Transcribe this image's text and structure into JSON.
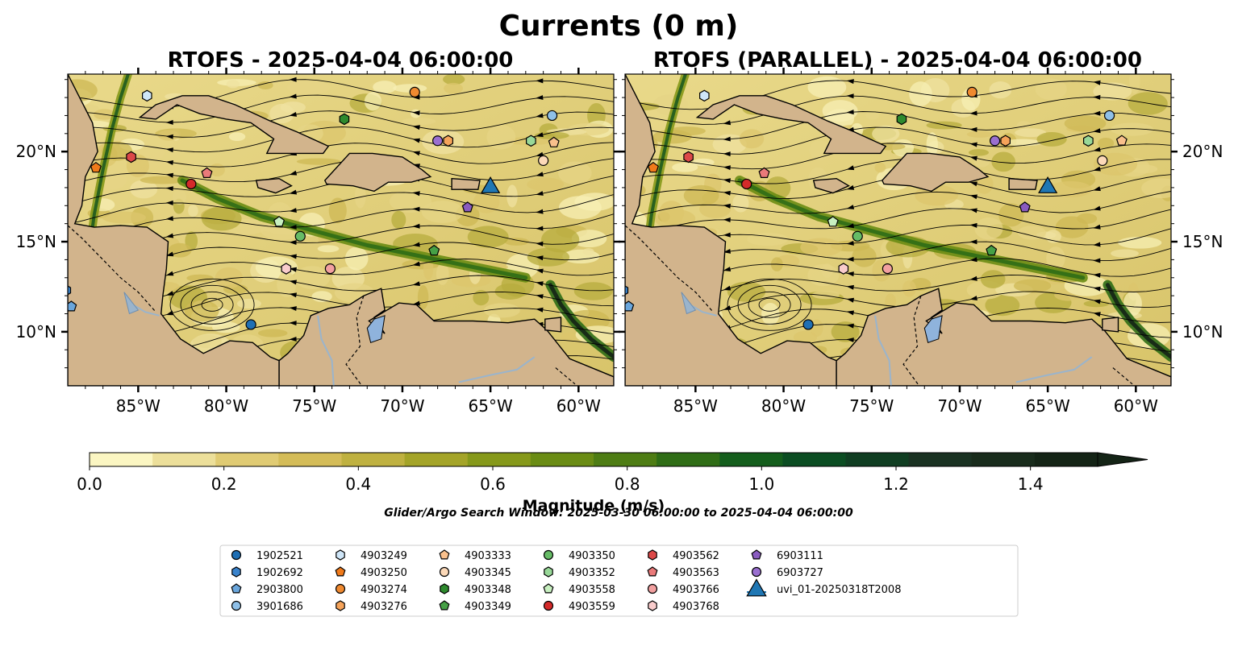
{
  "figure": {
    "suptitle": "Currents (0 m)",
    "panels": [
      {
        "id": "left",
        "title": "RTOFS - 2025-04-04 06:00:00",
        "show_left_labels": true,
        "show_right_labels": false
      },
      {
        "id": "right",
        "title": "RTOFS (PARALLEL) - 2025-04-04 06:00:00",
        "show_left_labels": false,
        "show_right_labels": true
      }
    ],
    "map_extent": {
      "lon_min": -89.0,
      "lon_max": -58.0,
      "lat_min": 7.0,
      "lat_max": 24.3
    },
    "x_ticks": [
      {
        "lon": -85,
        "label": "85°W"
      },
      {
        "lon": -80,
        "label": "80°W"
      },
      {
        "lon": -75,
        "label": "75°W"
      },
      {
        "lon": -70,
        "label": "70°W"
      },
      {
        "lon": -65,
        "label": "65°W"
      },
      {
        "lon": -60,
        "label": "60°W"
      }
    ],
    "y_ticks": [
      {
        "lat": 20,
        "label": "20°N"
      },
      {
        "lat": 15,
        "label": "15°N"
      },
      {
        "lat": 10,
        "label": "10°N"
      }
    ],
    "colors": {
      "land": "#d2b48c",
      "lake": "#8fb3dc",
      "river": "#9ab4cc",
      "streamline": "#000000"
    },
    "colorbar": {
      "label": "Magnitude (m/s)",
      "colors": [
        "#fbf6c2",
        "#ecdf9a",
        "#e0cb73",
        "#d4bc58",
        "#bfb140",
        "#a4a428",
        "#86991a",
        "#6a8c14",
        "#4e7d14",
        "#2f6d16",
        "#145e1c",
        "#0b4d22",
        "#103e22",
        "#1a3222",
        "#192c1c",
        "#142416"
      ],
      "ticks": [
        {
          "value": 0.0,
          "label": "0.0"
        },
        {
          "value": 0.2,
          "label": "0.2"
        },
        {
          "value": 0.4,
          "label": "0.4"
        },
        {
          "value": 0.6,
          "label": "0.6"
        },
        {
          "value": 0.8,
          "label": "0.8"
        },
        {
          "value": 1.0,
          "label": "1.0"
        },
        {
          "value": 1.2,
          "label": "1.2"
        },
        {
          "value": 1.4,
          "label": "1.4"
        }
      ],
      "vmin": 0.0,
      "vmax": 1.5,
      "extend": "max"
    },
    "search_window": "Glider/Argo Search Window: 2025-03-30 06:00:00 to 2025-04-04 06:00:00",
    "legend": [
      {
        "id": "1902521",
        "marker": "circle",
        "color": "#1f6fb4"
      },
      {
        "id": "1902692",
        "marker": "hexagon",
        "color": "#3a83cc"
      },
      {
        "id": "2903800",
        "marker": "pentagon",
        "color": "#6aa6dc"
      },
      {
        "id": "3901686",
        "marker": "circle",
        "color": "#8fc0e8"
      },
      {
        "id": "4903249",
        "marker": "hexagon",
        "color": "#cfe6f8"
      },
      {
        "id": "4903250",
        "marker": "pentagon",
        "color": "#f07a1a"
      },
      {
        "id": "4903274",
        "marker": "circle",
        "color": "#f08a30"
      },
      {
        "id": "4903276",
        "marker": "hexagon",
        "color": "#f5a35a"
      },
      {
        "id": "4903333",
        "marker": "pentagon",
        "color": "#f9c08c"
      },
      {
        "id": "4903345",
        "marker": "circle",
        "color": "#fcd9b8"
      },
      {
        "id": "4903348",
        "marker": "hexagon",
        "color": "#2e8a2e"
      },
      {
        "id": "4903349",
        "marker": "pentagon",
        "color": "#46a046"
      },
      {
        "id": "4903350",
        "marker": "circle",
        "color": "#66bb66"
      },
      {
        "id": "4903352",
        "marker": "hexagon",
        "color": "#98d898"
      },
      {
        "id": "4903558",
        "marker": "pentagon",
        "color": "#c8f0c0"
      },
      {
        "id": "4903559",
        "marker": "circle",
        "color": "#d42a2a"
      },
      {
        "id": "4903562",
        "marker": "hexagon",
        "color": "#dc4848"
      },
      {
        "id": "4903563",
        "marker": "pentagon",
        "color": "#ea7a7a"
      },
      {
        "id": "4903766",
        "marker": "circle",
        "color": "#f2a0a0"
      },
      {
        "id": "4903768",
        "marker": "hexagon",
        "color": "#f9cccc"
      },
      {
        "id": "6903111",
        "marker": "pentagon",
        "color": "#8a5cc0"
      },
      {
        "id": "6903727",
        "marker": "circle",
        "color": "#9a6fd0"
      },
      {
        "id": "uvi_01-20250318T2008",
        "marker": "triangle",
        "color": "#1f77b4"
      }
    ],
    "observations": [
      {
        "id": "1902521",
        "lon": -78.6,
        "lat": 10.4,
        "lon_p": -78.6,
        "lat_p": 10.4
      },
      {
        "id": "1902692",
        "lon": -89.1,
        "lat": 12.3,
        "lon_p": -89.1,
        "lat_p": 12.3
      },
      {
        "id": "2903800",
        "lon": -88.8,
        "lat": 11.4,
        "lon_p": -88.8,
        "lat_p": 11.4
      },
      {
        "id": "3901686",
        "lon": -61.5,
        "lat": 22.0,
        "lon_p": -61.5,
        "lat_p": 22.0
      },
      {
        "id": "4903249",
        "lon": -84.5,
        "lat": 23.1,
        "lon_p": -84.5,
        "lat_p": 23.1
      },
      {
        "id": "4903250",
        "lon": -87.4,
        "lat": 19.1,
        "lon_p": -87.4,
        "lat_p": 19.1
      },
      {
        "id": "4903274",
        "lon": -69.3,
        "lat": 23.3,
        "lon_p": -69.3,
        "lat_p": 23.3
      },
      {
        "id": "4903276",
        "lon": -67.4,
        "lat": 20.6,
        "lon_p": -67.4,
        "lat_p": 20.6
      },
      {
        "id": "4903333",
        "lon": -61.4,
        "lat": 20.5,
        "lon_p": -60.8,
        "lat_p": 20.6
      },
      {
        "id": "4903345",
        "lon": -62.0,
        "lat": 19.5,
        "lon_p": -61.9,
        "lat_p": 19.5
      },
      {
        "id": "4903348",
        "lon": -73.3,
        "lat": 21.8,
        "lon_p": -73.3,
        "lat_p": 21.8
      },
      {
        "id": "4903349",
        "lon": -68.2,
        "lat": 14.5,
        "lon_p": -68.2,
        "lat_p": 14.5
      },
      {
        "id": "4903350",
        "lon": -75.8,
        "lat": 15.3,
        "lon_p": -75.8,
        "lat_p": 15.3
      },
      {
        "id": "4903352",
        "lon": -62.7,
        "lat": 20.6,
        "lon_p": -62.7,
        "lat_p": 20.6
      },
      {
        "id": "4903558",
        "lon": -77.0,
        "lat": 16.1,
        "lon_p": -77.2,
        "lat_p": 16.1
      },
      {
        "id": "4903559",
        "lon": -82.0,
        "lat": 18.2,
        "lon_p": -82.1,
        "lat_p": 18.2
      },
      {
        "id": "4903562",
        "lon": -85.4,
        "lat": 19.7,
        "lon_p": -85.4,
        "lat_p": 19.7
      },
      {
        "id": "4903563",
        "lon": -81.1,
        "lat": 18.8,
        "lon_p": -81.1,
        "lat_p": 18.8
      },
      {
        "id": "4903766",
        "lon": -74.1,
        "lat": 13.5,
        "lon_p": -74.1,
        "lat_p": 13.5
      },
      {
        "id": "4903768",
        "lon": -76.6,
        "lat": 13.5,
        "lon_p": -76.6,
        "lat_p": 13.5
      },
      {
        "id": "6903111",
        "lon": -66.3,
        "lat": 16.9,
        "lon_p": -66.3,
        "lat_p": 16.9
      },
      {
        "id": "6903727",
        "lon": -68.0,
        "lat": 20.6,
        "lon_p": -68.0,
        "lat_p": 20.6
      },
      {
        "id": "uvi_01-20250318T2008",
        "lon": -65.0,
        "lat": 18.0,
        "lon_p": -65.0,
        "lat_p": 18.0
      }
    ]
  }
}
